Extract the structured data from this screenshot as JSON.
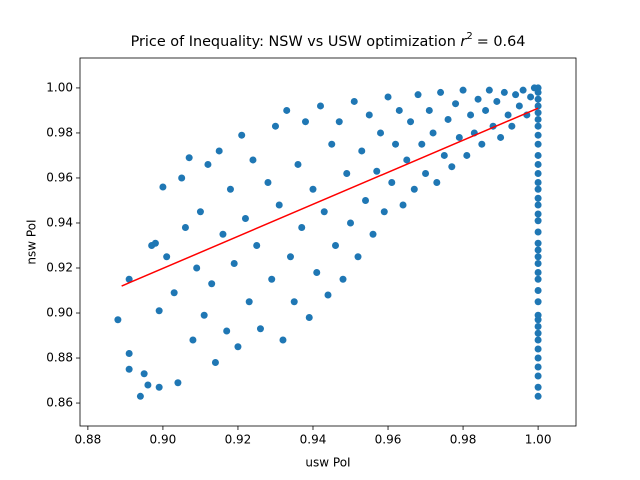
{
  "chart_data": {
    "type": "scatter",
    "title": "Price of Inequality: NSW vs USW optimization",
    "title_math": {
      "symbol": "r",
      "exponent": "2",
      "value_text": "= 0.64"
    },
    "x_label": "usw PoI",
    "y_label": "nsw PoI",
    "xlim": [
      0.8779,
      1.0101
    ],
    "ylim": [
      0.8498,
      1.0133
    ],
    "xticks": [
      {
        "value": 0.88,
        "label": "0.88"
      },
      {
        "value": 0.9,
        "label": "0.90"
      },
      {
        "value": 0.92,
        "label": "0.92"
      },
      {
        "value": 0.94,
        "label": "0.94"
      },
      {
        "value": 0.96,
        "label": "0.96"
      },
      {
        "value": 0.98,
        "label": "0.98"
      },
      {
        "value": 1.0,
        "label": "1.00"
      }
    ],
    "yticks": [
      {
        "value": 0.86,
        "label": "0.86"
      },
      {
        "value": 0.88,
        "label": "0.88"
      },
      {
        "value": 0.9,
        "label": "0.90"
      },
      {
        "value": 0.92,
        "label": "0.92"
      },
      {
        "value": 0.94,
        "label": "0.94"
      },
      {
        "value": 0.96,
        "label": "0.96"
      },
      {
        "value": 0.98,
        "label": "0.98"
      },
      {
        "value": 1.0,
        "label": "1.00"
      }
    ],
    "series": [
      {
        "color": "#1f77b4",
        "x": [
          1,
          1,
          1,
          1,
          1,
          1,
          1,
          1,
          1,
          1,
          1,
          1,
          1,
          1,
          1,
          1,
          1,
          1,
          1,
          1,
          1,
          1,
          1,
          1,
          1,
          1,
          1,
          1,
          1,
          1,
          1,
          1,
          1,
          1,
          1,
          1,
          1,
          1,
          0.888,
          0.891,
          0.891,
          0.891,
          0.894,
          0.895,
          0.896,
          0.897,
          0.898,
          0.899,
          0.899,
          0.9,
          0.901,
          0.903,
          0.904,
          0.905,
          0.906,
          0.907,
          0.908,
          0.909,
          0.91,
          0.911,
          0.912,
          0.913,
          0.914,
          0.915,
          0.916,
          0.917,
          0.918,
          0.919,
          0.92,
          0.921,
          0.922,
          0.923,
          0.924,
          0.925,
          0.926,
          0.928,
          0.929,
          0.93,
          0.931,
          0.932,
          0.933,
          0.934,
          0.935,
          0.936,
          0.937,
          0.938,
          0.939,
          0.94,
          0.941,
          0.942,
          0.943,
          0.944,
          0.945,
          0.946,
          0.947,
          0.948,
          0.949,
          0.95,
          0.951,
          0.952,
          0.953,
          0.954,
          0.955,
          0.956,
          0.957,
          0.958,
          0.959,
          0.96,
          0.961,
          0.962,
          0.963,
          0.964,
          0.965,
          0.966,
          0.967,
          0.968,
          0.969,
          0.97,
          0.971,
          0.972,
          0.973,
          0.974,
          0.975,
          0.976,
          0.977,
          0.978,
          0.979,
          0.98,
          0.981,
          0.982,
          0.983,
          0.984,
          0.985,
          0.986,
          0.987,
          0.988,
          0.989,
          0.99,
          0.991,
          0.992,
          0.993,
          0.994,
          0.995,
          0.996,
          0.997,
          0.998,
          0.999
        ],
        "y": [
          0.863,
          0.867,
          0.872,
          0.876,
          0.88,
          0.884,
          0.888,
          0.891,
          0.894,
          0.897,
          0.899,
          0.905,
          0.91,
          0.915,
          0.918,
          0.922,
          0.925,
          0.928,
          0.931,
          0.936,
          0.941,
          0.944,
          0.948,
          0.951,
          0.955,
          0.958,
          0.962,
          0.966,
          0.97,
          0.975,
          0.979,
          0.983,
          0.986,
          0.989,
          0.992,
          0.995,
          0.998,
          1.0,
          0.897,
          0.915,
          0.882,
          0.875,
          0.863,
          0.873,
          0.868,
          0.93,
          0.931,
          0.901,
          0.867,
          0.956,
          0.925,
          0.909,
          0.869,
          0.96,
          0.938,
          0.969,
          0.888,
          0.92,
          0.945,
          0.899,
          0.966,
          0.913,
          0.878,
          0.972,
          0.935,
          0.892,
          0.955,
          0.922,
          0.885,
          0.979,
          0.942,
          0.905,
          0.968,
          0.93,
          0.893,
          0.958,
          0.915,
          0.983,
          0.948,
          0.888,
          0.99,
          0.925,
          0.905,
          0.966,
          0.938,
          0.985,
          0.898,
          0.955,
          0.918,
          0.992,
          0.945,
          0.908,
          0.975,
          0.93,
          0.985,
          0.915,
          0.962,
          0.94,
          0.994,
          0.925,
          0.972,
          0.95,
          0.988,
          0.935,
          0.963,
          0.98,
          0.945,
          0.996,
          0.958,
          0.975,
          0.99,
          0.948,
          0.968,
          0.985,
          0.955,
          0.997,
          0.975,
          0.962,
          0.99,
          0.98,
          0.958,
          0.998,
          0.97,
          0.986,
          0.965,
          0.993,
          0.978,
          0.999,
          0.97,
          0.988,
          0.98,
          0.995,
          0.975,
          0.99,
          0.999,
          0.983,
          0.994,
          0.978,
          0.998,
          0.988,
          0.983,
          0.997,
          0.992,
          0.999,
          0.988,
          0.996,
          1.0
        ]
      }
    ],
    "fit": {
      "color": "#ff0000",
      "x": [
        0.889,
        1.0
      ],
      "y": [
        0.912,
        0.991
      ]
    }
  }
}
